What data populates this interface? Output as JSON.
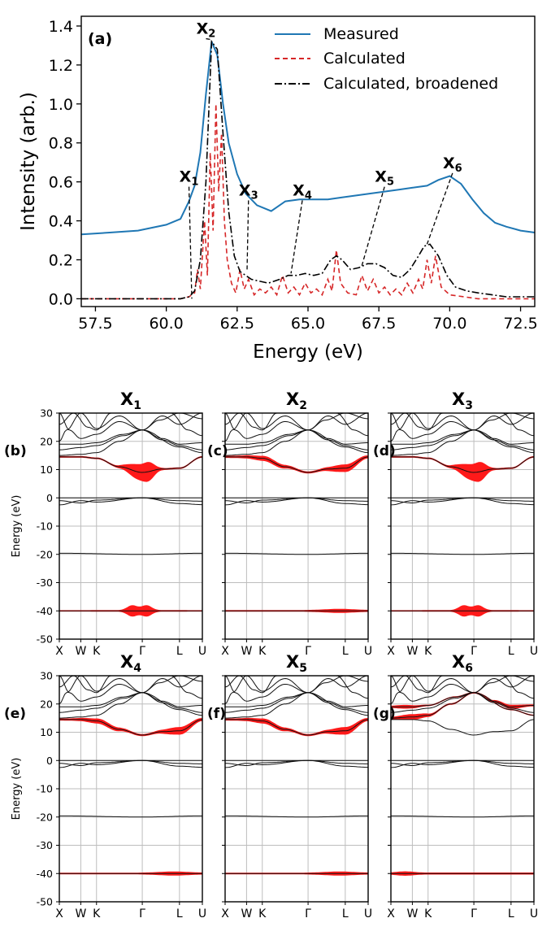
{
  "chart_data": [
    {
      "type": "line",
      "panel_label": "(a)",
      "xlabel": "Energy (eV)",
      "ylabel": "Intensity (arb.)",
      "xlim": [
        57.0,
        73.0
      ],
      "ylim": [
        -0.04,
        1.45
      ],
      "xticks": [
        "57.5",
        "60.0",
        "62.5",
        "65.0",
        "67.5",
        "70.0",
        "72.5"
      ],
      "yticks": [
        "0.0",
        "0.2",
        "0.4",
        "0.6",
        "0.8",
        "1.0",
        "1.2",
        "1.4"
      ],
      "legend": {
        "position": "top-right",
        "entries": [
          "Measured",
          "Calculated",
          "Calculated, broadened"
        ]
      },
      "series": [
        {
          "name": "Measured",
          "color": "#1f77b4",
          "x": [
            57.0,
            58.0,
            59.0,
            60.0,
            60.5,
            60.8,
            61.0,
            61.2,
            61.4,
            61.6,
            61.8,
            62.0,
            62.2,
            62.5,
            62.8,
            63.2,
            63.7,
            64.2,
            64.7,
            65.2,
            65.7,
            66.2,
            66.7,
            67.2,
            67.7,
            68.2,
            68.7,
            69.2,
            69.6,
            70.0,
            70.4,
            70.8,
            71.2,
            71.6,
            72.0,
            72.5,
            73.0
          ],
          "y": [
            0.33,
            0.34,
            0.35,
            0.38,
            0.41,
            0.5,
            0.58,
            0.75,
            1.05,
            1.32,
            1.25,
            1.0,
            0.8,
            0.64,
            0.54,
            0.48,
            0.45,
            0.5,
            0.51,
            0.51,
            0.51,
            0.52,
            0.53,
            0.54,
            0.55,
            0.56,
            0.57,
            0.58,
            0.61,
            0.63,
            0.59,
            0.51,
            0.44,
            0.39,
            0.37,
            0.35,
            0.34
          ]
        },
        {
          "name": "Calculated",
          "color": "#d62728",
          "x": [
            57.0,
            60.5,
            60.8,
            61.0,
            61.1,
            61.2,
            61.35,
            61.45,
            61.55,
            61.65,
            61.75,
            61.85,
            61.95,
            62.05,
            62.15,
            62.3,
            62.45,
            62.6,
            62.75,
            62.9,
            63.1,
            63.3,
            63.5,
            63.7,
            63.9,
            64.1,
            64.3,
            64.5,
            64.7,
            64.9,
            65.1,
            65.3,
            65.5,
            65.7,
            65.85,
            66.0,
            66.15,
            66.4,
            66.7,
            66.9,
            67.1,
            67.3,
            67.5,
            67.7,
            67.9,
            68.1,
            68.3,
            68.5,
            68.7,
            68.9,
            69.05,
            69.2,
            69.35,
            69.5,
            69.7,
            70.0,
            70.5,
            71.0,
            72.0,
            73.0
          ],
          "y": [
            0.0,
            0.0,
            0.01,
            0.03,
            0.15,
            0.05,
            0.4,
            0.12,
            0.75,
            0.35,
            1.0,
            0.55,
            0.85,
            0.4,
            0.2,
            0.08,
            0.03,
            0.15,
            0.05,
            0.1,
            0.02,
            0.05,
            0.03,
            0.06,
            0.02,
            0.12,
            0.03,
            0.06,
            0.02,
            0.08,
            0.03,
            0.05,
            0.02,
            0.1,
            0.04,
            0.25,
            0.08,
            0.03,
            0.02,
            0.12,
            0.04,
            0.1,
            0.03,
            0.06,
            0.02,
            0.05,
            0.02,
            0.08,
            0.03,
            0.1,
            0.05,
            0.2,
            0.08,
            0.22,
            0.06,
            0.02,
            0.01,
            0.0,
            0.0,
            0.0
          ]
        },
        {
          "name": "Calculated, broadened",
          "color": "#000000",
          "x": [
            57.0,
            60.0,
            60.5,
            60.8,
            61.0,
            61.2,
            61.4,
            61.6,
            61.8,
            62.0,
            62.2,
            62.4,
            62.6,
            62.8,
            63.0,
            63.3,
            63.6,
            64.0,
            64.3,
            64.6,
            64.9,
            65.2,
            65.5,
            65.8,
            66.0,
            66.2,
            66.5,
            66.8,
            67.1,
            67.4,
            67.7,
            68.0,
            68.3,
            68.6,
            68.9,
            69.1,
            69.3,
            69.6,
            69.9,
            70.2,
            70.6,
            71.0,
            71.5,
            72.0,
            73.0
          ],
          "y": [
            0.0,
            0.0,
            0.0,
            0.01,
            0.04,
            0.2,
            0.6,
            1.32,
            1.28,
            0.85,
            0.45,
            0.22,
            0.14,
            0.12,
            0.1,
            0.09,
            0.08,
            0.1,
            0.12,
            0.12,
            0.13,
            0.12,
            0.13,
            0.2,
            0.22,
            0.2,
            0.15,
            0.16,
            0.18,
            0.18,
            0.16,
            0.12,
            0.11,
            0.15,
            0.22,
            0.27,
            0.28,
            0.22,
            0.12,
            0.06,
            0.04,
            0.03,
            0.02,
            0.01,
            0.01
          ]
        }
      ],
      "annotations": [
        {
          "base": "X",
          "sub": "1",
          "label_x": 60.8,
          "label_y": 0.6,
          "target_x": 60.9,
          "target_y": 0.0
        },
        {
          "base": "X",
          "sub": "2",
          "label_x": 61.4,
          "label_y": 1.36,
          "target_x": 61.6,
          "target_y": 1.33
        },
        {
          "base": "X",
          "sub": "3",
          "label_x": 62.9,
          "label_y": 0.53,
          "target_x": 62.85,
          "target_y": 0.15
        },
        {
          "base": "X",
          "sub": "4",
          "label_x": 64.8,
          "label_y": 0.53,
          "target_x": 64.4,
          "target_y": 0.13
        },
        {
          "base": "X",
          "sub": "5",
          "label_x": 67.7,
          "label_y": 0.6,
          "target_x": 66.9,
          "target_y": 0.17
        },
        {
          "base": "X",
          "sub": "6",
          "label_x": 70.1,
          "label_y": 0.67,
          "target_x": 69.2,
          "target_y": 0.28
        }
      ]
    },
    {
      "type": "band-structure",
      "ylabel": "Energy (eV)",
      "ylim": [
        -50,
        30
      ],
      "yticks": [
        "30",
        "20",
        "10",
        "0",
        "-10",
        "-20",
        "-30",
        "-40",
        "-50"
      ],
      "kpoints": [
        "X",
        "W",
        "K",
        "Γ",
        "L",
        "U"
      ],
      "kpoint_positions": [
        0.0,
        0.15,
        0.26,
        0.58,
        0.84,
        1.0
      ],
      "panels": [
        {
          "label": "(b)",
          "title_base": "X",
          "title_sub": "1",
          "weight_highlight": "upper-gamma"
        },
        {
          "label": "(c)",
          "title_base": "X",
          "title_sub": "2",
          "weight_highlight": "upper-thin"
        },
        {
          "label": "(d)",
          "title_base": "X",
          "title_sub": "3",
          "weight_highlight": "upper-gamma"
        },
        {
          "label": "(e)",
          "title_base": "X",
          "title_sub": "4",
          "weight_highlight": "upper-thin"
        },
        {
          "label": "(f)",
          "title_base": "X",
          "title_sub": "5",
          "weight_highlight": "upper-thin"
        },
        {
          "label": "(g)",
          "title_base": "X",
          "title_sub": "6",
          "weight_highlight": "top-band"
        }
      ]
    }
  ]
}
